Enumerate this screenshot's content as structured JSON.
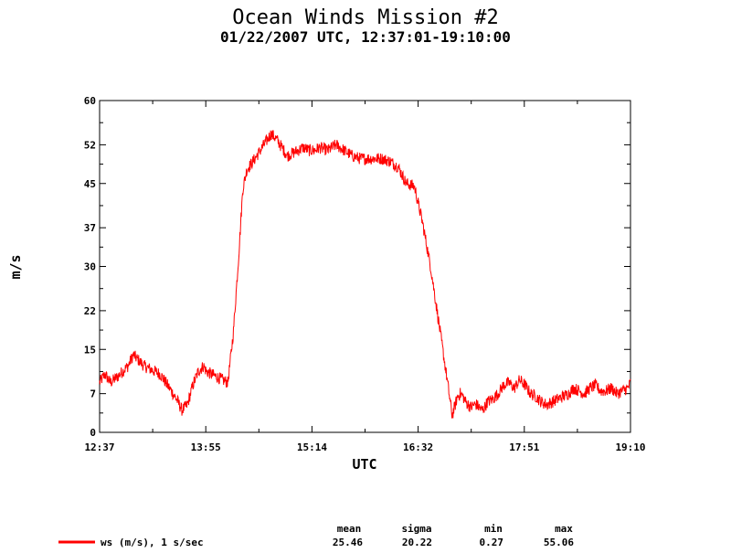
{
  "chart_data": {
    "type": "line",
    "title": "Ocean Winds Mission #2",
    "subtitle": "01/22/2007  UTC, 12:37:01-19:10:00",
    "xlabel": "UTC",
    "ylabel": "m/s",
    "x_range": [
      "12:37",
      "19:10"
    ],
    "ylim": [
      0,
      60
    ],
    "x_ticks": [
      "12:37",
      "13:55",
      "15:14",
      "16:32",
      "17:51",
      "19:10"
    ],
    "y_ticks": [
      "0",
      "7",
      "15",
      "22",
      "30",
      "37",
      "45",
      "52",
      "60"
    ],
    "grid": false,
    "legend_position": "bottom-left",
    "series": [
      {
        "name": "ws (m/s), 1 s/sec",
        "color": "#ff0000",
        "x": [
          "12:37",
          "12:41",
          "12:45",
          "12:50",
          "12:54",
          "12:58",
          "13:02",
          "13:06",
          "13:10",
          "13:14",
          "13:18",
          "13:22",
          "13:26",
          "13:30",
          "13:34",
          "13:38",
          "13:42",
          "13:46",
          "13:50",
          "13:54",
          "13:56",
          "14:00",
          "14:04",
          "14:08",
          "14:12",
          "14:16",
          "14:20",
          "14:23",
          "14:26",
          "14:29",
          "14:32",
          "14:36",
          "14:40",
          "14:44",
          "14:48",
          "14:52",
          "14:56",
          "15:00",
          "15:04",
          "15:08",
          "15:12",
          "15:16",
          "15:20",
          "15:26",
          "15:32",
          "15:38",
          "15:44",
          "15:50",
          "15:56",
          "16:00",
          "16:06",
          "16:12",
          "16:18",
          "16:24",
          "16:30",
          "16:36",
          "16:42",
          "16:48",
          "16:54",
          "16:58",
          "17:02",
          "17:04",
          "17:06",
          "17:08",
          "17:10",
          "17:12",
          "17:14",
          "17:16",
          "17:18",
          "17:20",
          "17:22",
          "17:24",
          "17:28",
          "17:32",
          "17:36",
          "17:40",
          "17:44",
          "17:48",
          "17:52",
          "17:56",
          "18:00",
          "18:04",
          "18:08",
          "18:12",
          "18:16",
          "18:20",
          "18:24",
          "18:28",
          "18:32",
          "18:36",
          "18:40",
          "18:44",
          "18:48",
          "18:52",
          "18:56",
          "19:00",
          "19:04",
          "19:08",
          "19:10"
        ],
        "y": [
          9,
          10.5,
          9,
          10,
          11,
          12,
          14,
          13,
          12,
          11.5,
          11,
          10.5,
          9,
          7.5,
          6,
          4,
          5,
          8.5,
          11,
          12,
          11,
          10.5,
          10,
          9.5,
          9,
          18,
          32,
          44,
          47.5,
          48.5,
          49.5,
          51,
          52.5,
          54,
          53,
          51.5,
          50,
          50.5,
          51,
          51.5,
          51,
          51,
          51.5,
          51,
          52,
          51,
          50,
          49.5,
          49.5,
          49.5,
          49.5,
          49,
          48,
          45,
          44.5,
          38,
          30,
          20,
          10,
          3,
          6.5,
          7,
          6.5,
          5.5,
          5,
          4.5,
          5,
          5,
          4.5,
          4,
          4.5,
          5.5,
          6,
          7,
          8.5,
          9,
          8,
          9.5,
          8.5,
          7,
          6.5,
          5.5,
          5,
          5.5,
          6,
          6.5,
          7,
          8,
          7.5,
          7,
          8,
          8.5,
          7.5,
          7.5,
          8,
          7,
          7.5,
          8,
          9
        ]
      }
    ],
    "stats": {
      "headers": [
        "mean",
        "sigma",
        "min",
        "max"
      ],
      "values": [
        "25.46",
        "20.22",
        "0.27",
        "55.06"
      ]
    }
  }
}
